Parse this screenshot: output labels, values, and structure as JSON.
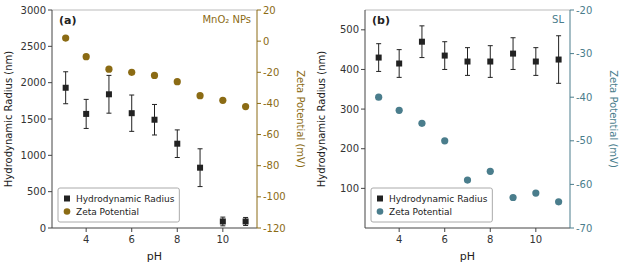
{
  "chart_data": [
    {
      "type": "scatter",
      "title": "MnO₂ NPs",
      "annotations": [
        "(a)"
      ],
      "x_label": "pH",
      "y_label": "Hydrodynamic Radius (nm)",
      "y2_label": "Zeta Potential (mV)",
      "x": [
        3.1,
        4,
        5,
        6,
        7,
        8,
        9,
        10,
        11
      ],
      "series": [
        {
          "name": "Hydrodynamic Radius",
          "color": "#222222",
          "marker": "square",
          "values": [
            1930,
            1570,
            1840,
            1580,
            1490,
            1160,
            830,
            90,
            90
          ],
          "errors": [
            220,
            200,
            260,
            250,
            210,
            190,
            260,
            60,
            55
          ]
        },
        {
          "name": "Zeta Potential",
          "color": "#8B6B14",
          "marker": "circle",
          "axis": "y2",
          "values": [
            2,
            -10,
            -18,
            -20,
            -22,
            -26,
            -35,
            -38,
            -42
          ]
        }
      ],
      "xlim": [
        2.5,
        11.5
      ],
      "xticks": [
        4,
        6,
        8,
        10
      ],
      "ylim": [
        0,
        3000
      ],
      "yticks": [
        0,
        500,
        1000,
        1500,
        2000,
        2500,
        3000
      ],
      "y2lim": [
        -120,
        20
      ],
      "y2ticks": [
        -120,
        -100,
        -80,
        -60,
        -40,
        -20,
        0,
        20
      ],
      "legend": "lower left",
      "grid": false
    },
    {
      "type": "scatter",
      "title": "SL",
      "annotations": [
        "(b)"
      ],
      "x_label": "pH",
      "y_label": "Hydrodynamic Radius (nm)",
      "y2_label": "Zeta Potential (mV)",
      "x": [
        3.1,
        4,
        5,
        6,
        7,
        8,
        9,
        10,
        11
      ],
      "series": [
        {
          "name": "Hydrodynamic Radius",
          "color": "#222222",
          "marker": "square",
          "values": [
            430,
            415,
            470,
            435,
            420,
            420,
            440,
            420,
            425
          ],
          "errors": [
            35,
            35,
            40,
            35,
            35,
            40,
            40,
            35,
            60
          ]
        },
        {
          "name": "Zeta Potential",
          "color": "#4a7d8c",
          "marker": "circle",
          "axis": "y2",
          "values": [
            -40,
            -43,
            -46,
            -50,
            -59,
            -57,
            -63,
            -62,
            -64
          ]
        }
      ],
      "xlim": [
        2.5,
        11.5
      ],
      "xticks": [
        4,
        6,
        8,
        10
      ],
      "ylim": [
        0,
        550
      ],
      "yticks": [
        100,
        200,
        300,
        400,
        500
      ],
      "y2lim": [
        -70,
        -20
      ],
      "y2ticks": [
        -70,
        -60,
        -50,
        -40,
        -30,
        -20
      ],
      "legend": "lower left",
      "grid": false
    }
  ]
}
